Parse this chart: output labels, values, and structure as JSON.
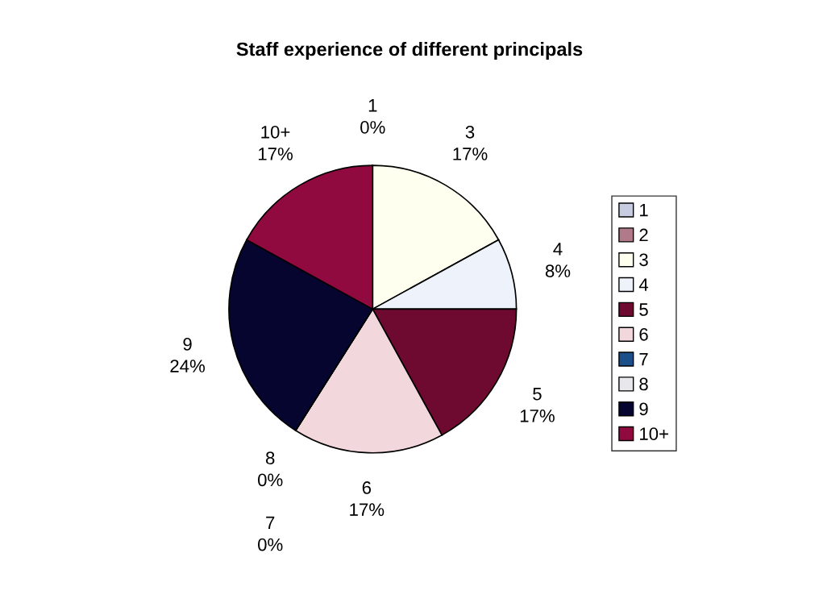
{
  "chart_data": {
    "type": "pie",
    "title": "Staff experience of different principals",
    "categories": [
      "1",
      "2",
      "3",
      "4",
      "5",
      "6",
      "7",
      "8",
      "9",
      "10+"
    ],
    "values": [
      0,
      0,
      17,
      8,
      17,
      17,
      0,
      0,
      24,
      17
    ],
    "value_labels": [
      "0%",
      null,
      "17%",
      "8%",
      "17%",
      "17%",
      "0%",
      "0%",
      "24%",
      "17%"
    ],
    "colors": [
      "#c8cce0",
      "#b07a8a",
      "#fffff0",
      "#eef2fa",
      "#6e0a30",
      "#f2d8dc",
      "#1a4f8a",
      "#e8e8ec",
      "#050530",
      "#900a40"
    ],
    "legend": "right"
  }
}
